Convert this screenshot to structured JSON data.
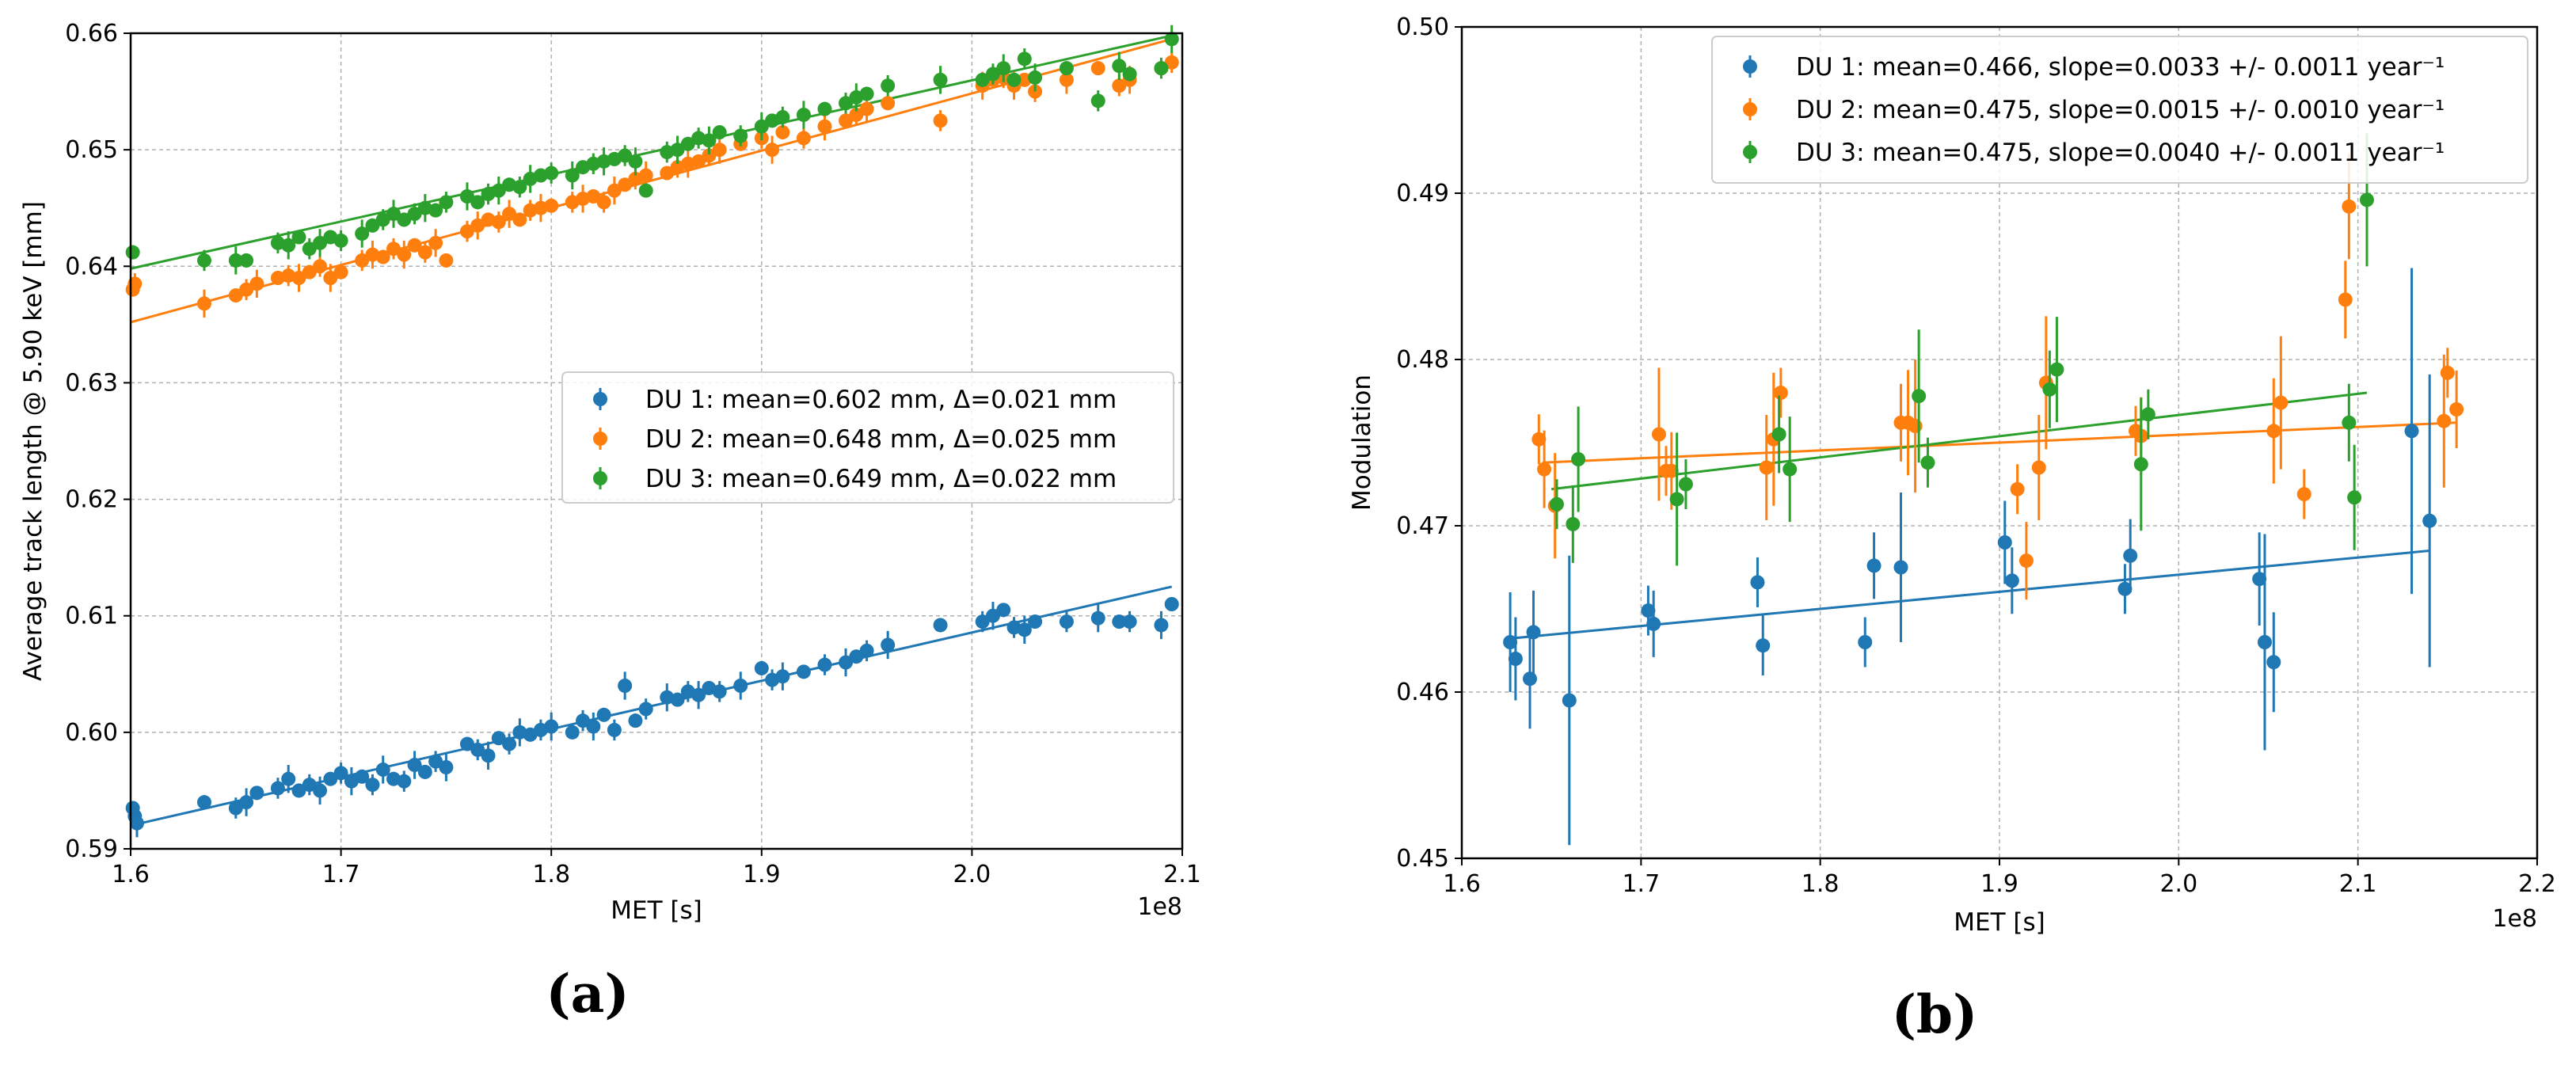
{
  "colors": {
    "du1": "#1f77b4",
    "du2": "#ff7f0e",
    "du3": "#2ca02c"
  },
  "chart_data": [
    {
      "type": "scatter",
      "panel_label": "(a)",
      "xlabel": "MET [s]",
      "ylabel": "Average track length @ 5.90 keV [mm]",
      "x_offset_label": "1e8",
      "xlim": [
        1.6,
        2.1
      ],
      "ylim": [
        0.59,
        0.66
      ],
      "xticks": [
        "1.6",
        "1.7",
        "1.8",
        "1.9",
        "2.0",
        "2.1"
      ],
      "yticks": [
        "0.59",
        "0.60",
        "0.61",
        "0.62",
        "0.63",
        "0.64",
        "0.65",
        "0.66"
      ],
      "grid": true,
      "legend_position": "center-right",
      "series": [
        {
          "name": "DU 1: mean=0.602 mm, Δ=0.021 mm",
          "color_key": "du1",
          "fit": [
            [
              1.6,
              0.592
            ],
            [
              2.095,
              0.6125
            ]
          ],
          "x": [
            1.601,
            1.602,
            1.603,
            1.635,
            1.65,
            1.655,
            1.66,
            1.67,
            1.675,
            1.68,
            1.685,
            1.69,
            1.695,
            1.7,
            1.705,
            1.71,
            1.715,
            1.72,
            1.725,
            1.73,
            1.735,
            1.74,
            1.745,
            1.75,
            1.76,
            1.765,
            1.77,
            1.775,
            1.78,
            1.785,
            1.79,
            1.795,
            1.8,
            1.81,
            1.815,
            1.82,
            1.825,
            1.83,
            1.835,
            1.84,
            1.845,
            1.855,
            1.86,
            1.865,
            1.87,
            1.875,
            1.88,
            1.89,
            1.9,
            1.905,
            1.91,
            1.92,
            1.93,
            1.94,
            1.945,
            1.95,
            1.96,
            1.985,
            2.005,
            2.01,
            2.015,
            2.02,
            2.025,
            2.03,
            2.045,
            2.06,
            2.07,
            2.075,
            2.09,
            2.095
          ],
          "y": [
            0.5935,
            0.5928,
            0.5922,
            0.594,
            0.5935,
            0.594,
            0.5948,
            0.5952,
            0.596,
            0.595,
            0.5955,
            0.595,
            0.596,
            0.5965,
            0.5958,
            0.5962,
            0.5955,
            0.5968,
            0.596,
            0.5958,
            0.5972,
            0.5966,
            0.5975,
            0.597,
            0.599,
            0.5985,
            0.598,
            0.5995,
            0.599,
            0.6,
            0.5998,
            0.6002,
            0.6005,
            0.6,
            0.601,
            0.6005,
            0.6015,
            0.6002,
            0.604,
            0.601,
            0.602,
            0.603,
            0.6028,
            0.6035,
            0.6032,
            0.6038,
            0.6035,
            0.604,
            0.6055,
            0.6045,
            0.6048,
            0.6052,
            0.6058,
            0.606,
            0.6065,
            0.607,
            0.6075,
            0.6092,
            0.6095,
            0.61,
            0.6105,
            0.609,
            0.6088,
            0.6095,
            0.6095,
            0.6098,
            0.6095,
            0.6095,
            0.6092,
            0.611
          ]
        },
        {
          "name": "DU 2: mean=0.648 mm, Δ=0.025 mm",
          "color_key": "du2",
          "fit": [
            [
              1.6,
              0.6352
            ],
            [
              2.095,
              0.6595
            ]
          ],
          "x": [
            1.601,
            1.602,
            1.635,
            1.65,
            1.655,
            1.66,
            1.67,
            1.675,
            1.68,
            1.685,
            1.69,
            1.695,
            1.7,
            1.71,
            1.715,
            1.72,
            1.725,
            1.73,
            1.735,
            1.74,
            1.745,
            1.75,
            1.76,
            1.765,
            1.77,
            1.775,
            1.78,
            1.785,
            1.79,
            1.795,
            1.8,
            1.81,
            1.815,
            1.82,
            1.825,
            1.83,
            1.835,
            1.84,
            1.845,
            1.855,
            1.86,
            1.865,
            1.87,
            1.875,
            1.88,
            1.89,
            1.9,
            1.905,
            1.91,
            1.92,
            1.93,
            1.94,
            1.945,
            1.95,
            1.96,
            1.985,
            2.005,
            2.01,
            2.015,
            2.02,
            2.025,
            2.03,
            2.045,
            2.06,
            2.07,
            2.075,
            2.09,
            2.095
          ],
          "y": [
            0.638,
            0.6385,
            0.6368,
            0.6375,
            0.638,
            0.6385,
            0.639,
            0.6392,
            0.639,
            0.6395,
            0.64,
            0.639,
            0.6395,
            0.6405,
            0.641,
            0.6408,
            0.6415,
            0.641,
            0.6418,
            0.6412,
            0.642,
            0.6405,
            0.643,
            0.6435,
            0.644,
            0.6438,
            0.6445,
            0.644,
            0.6448,
            0.645,
            0.6452,
            0.6455,
            0.6458,
            0.646,
            0.6455,
            0.6465,
            0.647,
            0.6475,
            0.6478,
            0.648,
            0.6485,
            0.6488,
            0.649,
            0.6495,
            0.65,
            0.6505,
            0.651,
            0.65,
            0.6515,
            0.651,
            0.652,
            0.6525,
            0.653,
            0.6535,
            0.654,
            0.6525,
            0.6555,
            0.656,
            0.6562,
            0.6555,
            0.656,
            0.655,
            0.656,
            0.657,
            0.6555,
            0.656,
            0.657,
            0.6575
          ]
        },
        {
          "name": "DU 3: mean=0.649 mm, Δ=0.022 mm",
          "color_key": "du3",
          "fit": [
            [
              1.6,
              0.6398
            ],
            [
              2.095,
              0.6598
            ]
          ],
          "x": [
            1.601,
            1.635,
            1.65,
            1.655,
            1.67,
            1.675,
            1.68,
            1.685,
            1.69,
            1.695,
            1.7,
            1.71,
            1.715,
            1.72,
            1.725,
            1.73,
            1.735,
            1.74,
            1.745,
            1.75,
            1.76,
            1.765,
            1.77,
            1.775,
            1.78,
            1.785,
            1.79,
            1.795,
            1.8,
            1.81,
            1.815,
            1.82,
            1.825,
            1.83,
            1.835,
            1.84,
            1.845,
            1.855,
            1.86,
            1.865,
            1.87,
            1.875,
            1.88,
            1.89,
            1.9,
            1.905,
            1.91,
            1.92,
            1.93,
            1.94,
            1.945,
            1.95,
            1.96,
            1.985,
            2.005,
            2.01,
            2.015,
            2.02,
            2.025,
            2.03,
            2.045,
            2.06,
            2.07,
            2.075,
            2.09,
            2.095
          ],
          "y": [
            0.6412,
            0.6405,
            0.6405,
            0.6405,
            0.642,
            0.6418,
            0.6425,
            0.6415,
            0.642,
            0.6425,
            0.6422,
            0.6428,
            0.6435,
            0.644,
            0.6445,
            0.644,
            0.6445,
            0.645,
            0.6448,
            0.6455,
            0.646,
            0.6455,
            0.6462,
            0.6465,
            0.647,
            0.6468,
            0.6475,
            0.6478,
            0.648,
            0.6478,
            0.6485,
            0.6488,
            0.649,
            0.6492,
            0.6495,
            0.649,
            0.6465,
            0.6498,
            0.65,
            0.6505,
            0.651,
            0.6508,
            0.6515,
            0.6512,
            0.652,
            0.6525,
            0.6528,
            0.653,
            0.6535,
            0.654,
            0.6545,
            0.6548,
            0.6555,
            0.656,
            0.656,
            0.6565,
            0.657,
            0.656,
            0.6578,
            0.6562,
            0.657,
            0.6542,
            0.6572,
            0.6565,
            0.657,
            0.6595
          ]
        }
      ]
    },
    {
      "type": "scatter",
      "panel_label": "(b)",
      "xlabel": "MET [s]",
      "ylabel": "Modulation",
      "x_offset_label": "1e8",
      "xlim": [
        1.6,
        2.2
      ],
      "ylim": [
        0.45,
        0.5
      ],
      "xticks": [
        "1.6",
        "1.7",
        "1.8",
        "1.9",
        "2.0",
        "2.1",
        "2.2"
      ],
      "yticks": [
        "0.45",
        "0.46",
        "0.47",
        "0.48",
        "0.49",
        "0.50"
      ],
      "grid": true,
      "legend_position": "top-right",
      "series": [
        {
          "name": "DU 1: mean=0.466, slope=0.0033 +/- 0.0011 year⁻¹",
          "color_key": "du1",
          "fit": [
            [
              1.625,
              0.4632
            ],
            [
              2.14,
              0.4685
            ]
          ],
          "x": [
            1.627,
            1.63,
            1.638,
            1.64,
            1.66,
            1.704,
            1.707,
            1.765,
            1.768,
            1.825,
            1.83,
            1.845,
            1.903,
            1.907,
            1.97,
            1.973,
            2.045,
            2.048,
            2.053,
            2.13,
            2.14
          ],
          "y": [
            0.463,
            0.462,
            0.4608,
            0.4636,
            0.4595,
            0.4649,
            0.4641,
            0.4666,
            0.4628,
            0.463,
            0.4676,
            0.4675,
            0.469,
            0.4667,
            0.4662,
            0.4682,
            0.4668,
            0.463,
            0.4618,
            0.4757,
            0.4703
          ],
          "err": [
            0.003,
            0.0025,
            0.003,
            0.0025,
            0.0087,
            0.0015,
            0.002,
            0.0015,
            0.0018,
            0.0015,
            0.002,
            0.0045,
            0.0025,
            0.002,
            0.0015,
            0.0022,
            0.0028,
            0.0065,
            0.003,
            0.0098,
            0.0088
          ]
        },
        {
          "name": "DU 2: mean=0.475, slope=0.0015 +/- 0.0010 year⁻¹",
          "color_key": "du2",
          "fit": [
            [
              1.645,
              0.4738
            ],
            [
              2.155,
              0.4762
            ]
          ],
          "x": [
            1.643,
            1.646,
            1.652,
            1.71,
            1.714,
            1.717,
            1.77,
            1.774,
            1.778,
            1.845,
            1.849,
            1.853,
            1.91,
            1.915,
            1.922,
            1.926,
            1.976,
            1.979,
            2.053,
            2.057,
            2.07,
            2.093,
            2.095,
            2.148,
            2.15,
            2.155
          ],
          "y": [
            0.4752,
            0.4734,
            0.4712,
            0.4755,
            0.4733,
            0.4733,
            0.4735,
            0.4752,
            0.478,
            0.4762,
            0.4762,
            0.476,
            0.4722,
            0.4679,
            0.4735,
            0.4786,
            0.4757,
            0.4754,
            0.4757,
            0.4774,
            0.4719,
            0.4836,
            0.4892,
            0.4763,
            0.4792,
            0.477
          ]
        },
        {
          "name": "DU 3: mean=0.475, slope=0.0040 +/- 0.0011 year⁻¹",
          "color_key": "du3",
          "fit": [
            [
              1.65,
              0.4722
            ],
            [
              2.105,
              0.478
            ]
          ],
          "x": [
            1.653,
            1.662,
            1.665,
            1.72,
            1.725,
            1.777,
            1.783,
            1.855,
            1.86,
            1.928,
            1.932,
            1.979,
            1.983,
            2.095,
            2.098,
            2.105
          ],
          "y": [
            0.4713,
            0.4701,
            0.474,
            0.4716,
            0.4725,
            0.4755,
            0.4734,
            0.4778,
            0.4738,
            0.4782,
            0.4794,
            0.4737,
            0.4767,
            0.4762,
            0.4717,
            0.4896
          ]
        }
      ]
    }
  ]
}
